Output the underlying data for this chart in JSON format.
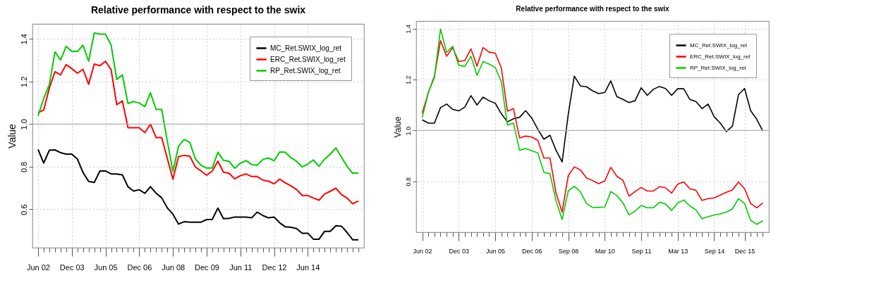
{
  "chart_data": [
    {
      "type": "line",
      "title": "Relative performance with respect to the swix",
      "ylabel": "Value",
      "categories": [
        "Jun 02",
        null,
        null,
        null,
        null,
        null,
        "Dec 03",
        null,
        null,
        null,
        null,
        null,
        "Jun 05",
        null,
        null,
        null,
        null,
        null,
        "Dec 06",
        null,
        null,
        null,
        null,
        null,
        "Jun 08",
        null,
        null,
        null,
        null,
        null,
        "Dec 09",
        null,
        null,
        null,
        null,
        null,
        "Jun 11",
        null,
        null,
        null,
        null,
        null,
        "Dec 12",
        null,
        null,
        null,
        null,
        null,
        "Jun 14",
        null,
        null,
        null,
        null,
        null,
        null,
        null,
        null,
        null
      ],
      "series": [
        {
          "name": "MC_Ret.SWIX_log_ret",
          "color": "#000000",
          "values": [
            0.881,
            0.817,
            0.877,
            0.879,
            0.866,
            0.859,
            0.859,
            0.836,
            0.773,
            0.731,
            0.726,
            0.78,
            0.78,
            0.766,
            0.766,
            0.762,
            0.706,
            0.686,
            0.692,
            0.675,
            0.706,
            0.676,
            0.654,
            0.607,
            0.577,
            0.531,
            0.542,
            0.54,
            0.54,
            0.54,
            0.552,
            0.553,
            0.606,
            0.556,
            0.558,
            0.564,
            0.564,
            0.564,
            0.56,
            0.587,
            0.571,
            0.56,
            0.564,
            0.537,
            0.518,
            0.516,
            0.51,
            0.488,
            0.488,
            0.46,
            0.46,
            0.497,
            0.497,
            0.523,
            0.521,
            0.491,
            0.457,
            0.457
          ]
        },
        {
          "name": "ERC_Ret.SWIX_log_ret",
          "color": "#ff0000",
          "values": [
            1.054,
            1.066,
            1.168,
            1.246,
            1.231,
            1.279,
            1.26,
            1.239,
            1.257,
            1.187,
            1.282,
            1.274,
            1.295,
            1.255,
            1.091,
            1.109,
            0.983,
            0.983,
            0.983,
            0.96,
            1.0,
            0.937,
            0.937,
            0.839,
            0.741,
            0.848,
            0.853,
            0.849,
            0.799,
            0.78,
            0.76,
            0.78,
            0.826,
            0.774,
            0.769,
            0.743,
            0.758,
            0.766,
            0.754,
            0.754,
            0.737,
            0.732,
            0.72,
            0.742,
            0.724,
            0.71,
            0.693,
            0.665,
            0.665,
            0.653,
            0.643,
            0.672,
            0.685,
            0.699,
            0.669,
            0.653,
            0.626,
            0.639
          ]
        },
        {
          "name": "RP_Ret.SWIX_log_ret",
          "color": "#00cc00",
          "values": [
            1.039,
            1.12,
            1.185,
            1.339,
            1.301,
            1.365,
            1.341,
            1.341,
            1.37,
            1.295,
            1.428,
            1.422,
            1.422,
            1.371,
            1.209,
            1.231,
            1.097,
            1.106,
            1.099,
            1.082,
            1.147,
            1.069,
            1.069,
            0.92,
            0.778,
            0.896,
            0.928,
            0.914,
            0.836,
            0.807,
            0.794,
            0.794,
            0.868,
            0.83,
            0.825,
            0.793,
            0.816,
            0.829,
            0.81,
            0.807,
            0.834,
            0.841,
            0.828,
            0.869,
            0.868,
            0.842,
            0.826,
            0.799,
            0.812,
            0.832,
            0.802,
            0.836,
            0.859,
            0.888,
            0.844,
            0.801,
            0.769,
            0.771
          ]
        }
      ],
      "ylim": [
        0.42,
        1.47
      ],
      "yticks": [
        0.6,
        0.8,
        {
          "value": 1,
          "label": "1.0"
        },
        1.2,
        1.4
      ],
      "grid": true,
      "legend": "top right",
      "line_style": "solid",
      "ref_lines": [
        {
          "axis": "y",
          "value": 1.0,
          "color": "#b0b0b0"
        }
      ]
    },
    {
      "type": "line",
      "title": "Relative performance with respect to the swix",
      "ylabel": "Value",
      "categories": [
        "Jun 02",
        null,
        null,
        null,
        null,
        null,
        "Dec 03",
        null,
        null,
        null,
        null,
        null,
        "Jun 05",
        null,
        null,
        null,
        null,
        null,
        "Dec 06",
        null,
        null,
        null,
        null,
        null,
        "Sep 08",
        null,
        null,
        null,
        null,
        null,
        "Mar 10",
        null,
        null,
        null,
        null,
        null,
        "Sep 11",
        null,
        null,
        null,
        null,
        null,
        "Mar 13",
        null,
        null,
        null,
        null,
        null,
        "Sep 14",
        null,
        null,
        null,
        null,
        "Dec 15",
        null,
        null,
        null
      ],
      "series": [
        {
          "name": "MC_Ret.SWIX_log_ret",
          "color": "#000000",
          "values": [
            1.042,
            1.029,
            1.029,
            1.09,
            1.104,
            1.083,
            1.077,
            1.092,
            1.137,
            1.1,
            1.131,
            1.117,
            1.107,
            1.066,
            1.034,
            1.046,
            1.052,
            1.078,
            1.049,
            1.005,
            0.966,
            0.981,
            0.922,
            0.876,
            1.063,
            1.214,
            1.175,
            1.172,
            1.156,
            1.145,
            1.149,
            1.195,
            1.133,
            1.122,
            1.11,
            1.117,
            1.168,
            1.138,
            1.162,
            1.173,
            1.165,
            1.138,
            1.164,
            1.164,
            1.122,
            1.114,
            1.086,
            1.104,
            1.054,
            1.029,
            0.996,
            1.017,
            1.141,
            1.165,
            1.078,
            1.044,
            0.998
          ]
        },
        {
          "name": "ERC_Ret.SWIX_log_ret",
          "color": "#ff0000",
          "values": [
            1.068,
            1.149,
            1.214,
            1.353,
            1.292,
            1.326,
            1.271,
            1.275,
            1.321,
            1.253,
            1.326,
            1.308,
            1.304,
            1.246,
            1.076,
            1.086,
            0.971,
            0.978,
            0.974,
            0.961,
            0.892,
            0.892,
            0.754,
            0.679,
            0.822,
            0.857,
            0.845,
            0.814,
            0.803,
            0.791,
            0.801,
            0.855,
            0.82,
            0.804,
            0.742,
            0.76,
            0.776,
            0.762,
            0.762,
            0.779,
            0.775,
            0.754,
            0.789,
            0.798,
            0.771,
            0.765,
            0.725,
            0.732,
            0.735,
            0.746,
            0.757,
            0.766,
            0.798,
            0.771,
            0.713,
            0.696,
            0.715
          ]
        },
        {
          "name": "RP_Ret.SWIX_log_ret",
          "color": "#00cc00",
          "values": [
            1.052,
            1.149,
            1.209,
            1.399,
            1.307,
            1.331,
            1.256,
            1.252,
            1.292,
            1.217,
            1.271,
            1.261,
            1.248,
            1.192,
            1.021,
            1.029,
            0.922,
            0.929,
            0.92,
            0.912,
            0.835,
            0.83,
            0.723,
            0.65,
            0.762,
            0.781,
            0.759,
            0.713,
            0.697,
            0.698,
            0.699,
            0.76,
            0.744,
            0.715,
            0.668,
            0.683,
            0.705,
            0.696,
            0.696,
            0.718,
            0.711,
            0.686,
            0.715,
            0.727,
            0.703,
            0.688,
            0.653,
            0.661,
            0.668,
            0.672,
            0.679,
            0.692,
            0.732,
            0.713,
            0.647,
            0.631,
            0.645
          ]
        }
      ],
      "ylim": [
        0.6,
        1.43
      ],
      "yticks": [
        0.8,
        {
          "value": 1,
          "label": "1.0"
        },
        1.2,
        1.4
      ],
      "grid": true,
      "legend": "top right",
      "line_style": "solid",
      "ref_lines": [
        {
          "axis": "y",
          "value": 1.0,
          "color": "#b0b0b0"
        }
      ]
    }
  ]
}
